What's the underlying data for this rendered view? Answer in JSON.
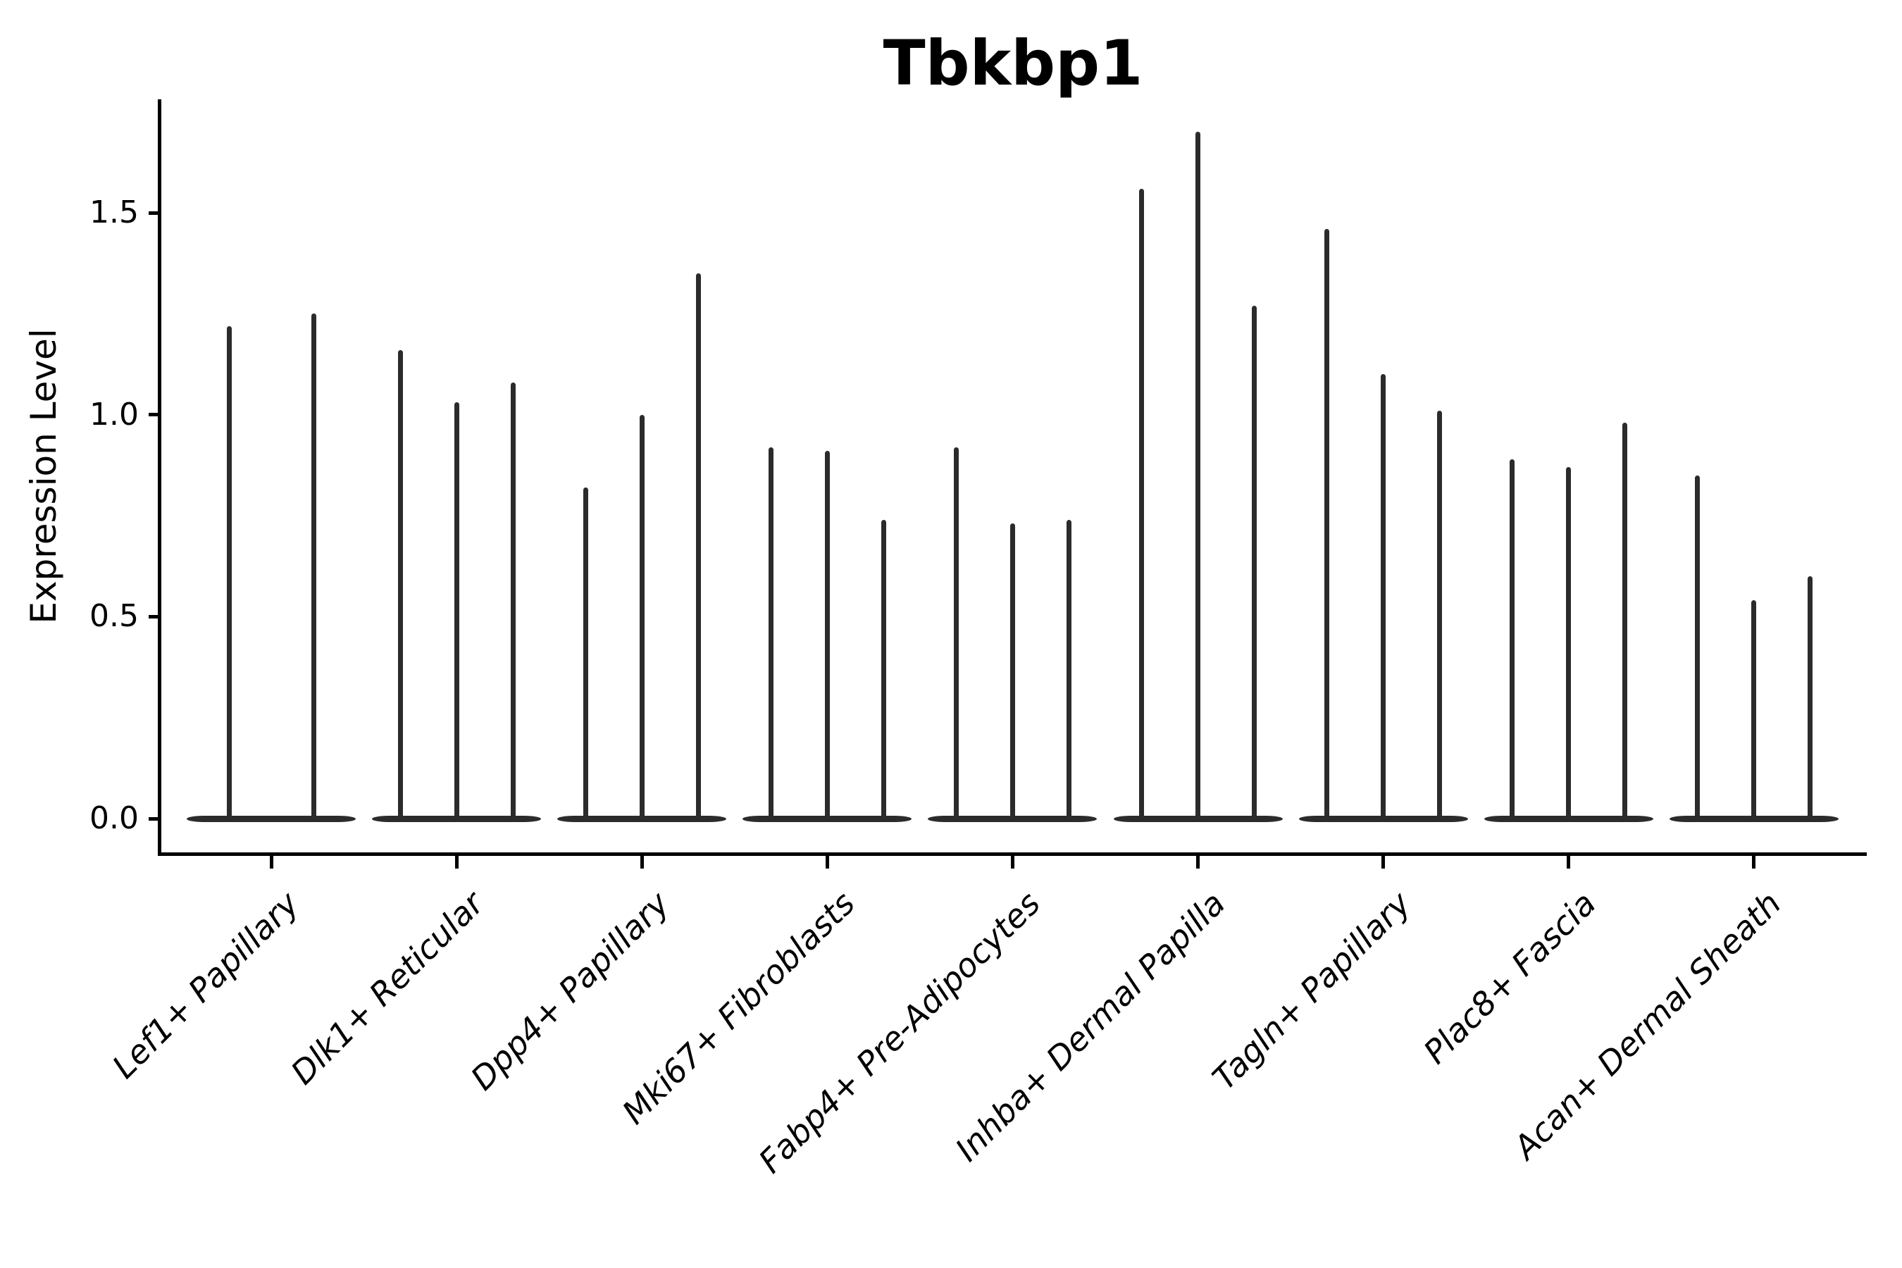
{
  "chart_data": {
    "type": "violin",
    "title": "Tbkbp1",
    "ylabel": "Expression Level",
    "xlabel": "",
    "yticks": [
      0.0,
      0.5,
      1.0,
      1.5
    ],
    "ytick_labels": [
      "0.0",
      "0.5",
      "1.0",
      "1.5"
    ],
    "ylim": [
      -0.08,
      1.78
    ],
    "grid": false,
    "legend": "none",
    "categories": [
      "Lef1+ Papillary",
      "Dlk1+ Reticular",
      "Dpp4+ Papillary",
      "Mki67+ Fibroblasts",
      "Fabp4+ Pre-Adipocytes",
      "Inhba+ Dermal Papilla",
      "Tagln+ Papillary",
      "Plac8+ Fascia",
      "Acan+ Dermal Sheath"
    ],
    "groups": [
      {
        "category": "Lef1+ Papillary",
        "violin_max_values": [
          1.22,
          1.25
        ]
      },
      {
        "category": "Dlk1+ Reticular",
        "violin_max_values": [
          1.16,
          1.03,
          1.08
        ]
      },
      {
        "category": "Dpp4+ Papillary",
        "violin_max_values": [
          0.82,
          1.0,
          1.35
        ]
      },
      {
        "category": "Mki67+ Fibroblasts",
        "violin_max_values": [
          0.92,
          0.91,
          0.74
        ]
      },
      {
        "category": "Fabp4+ Pre-Adipocytes",
        "violin_max_values": [
          0.92,
          0.73,
          0.74
        ]
      },
      {
        "category": "Inhba+ Dermal Papilla",
        "violin_max_values": [
          1.56,
          1.7,
          1.27
        ]
      },
      {
        "category": "Tagln+ Papillary",
        "violin_max_values": [
          1.46,
          1.1,
          1.01
        ]
      },
      {
        "category": "Plac8+ Fascia",
        "violin_max_values": [
          0.89,
          0.87,
          0.98
        ]
      },
      {
        "category": "Acan+ Dermal Sheath",
        "violin_max_values": [
          0.85,
          0.54,
          0.6
        ]
      }
    ],
    "violin_baseline_value": 0.0,
    "colors": {
      "violin": "#2b2b2b",
      "axis": "#000000",
      "text": "#000000",
      "background": "#ffffff"
    }
  }
}
